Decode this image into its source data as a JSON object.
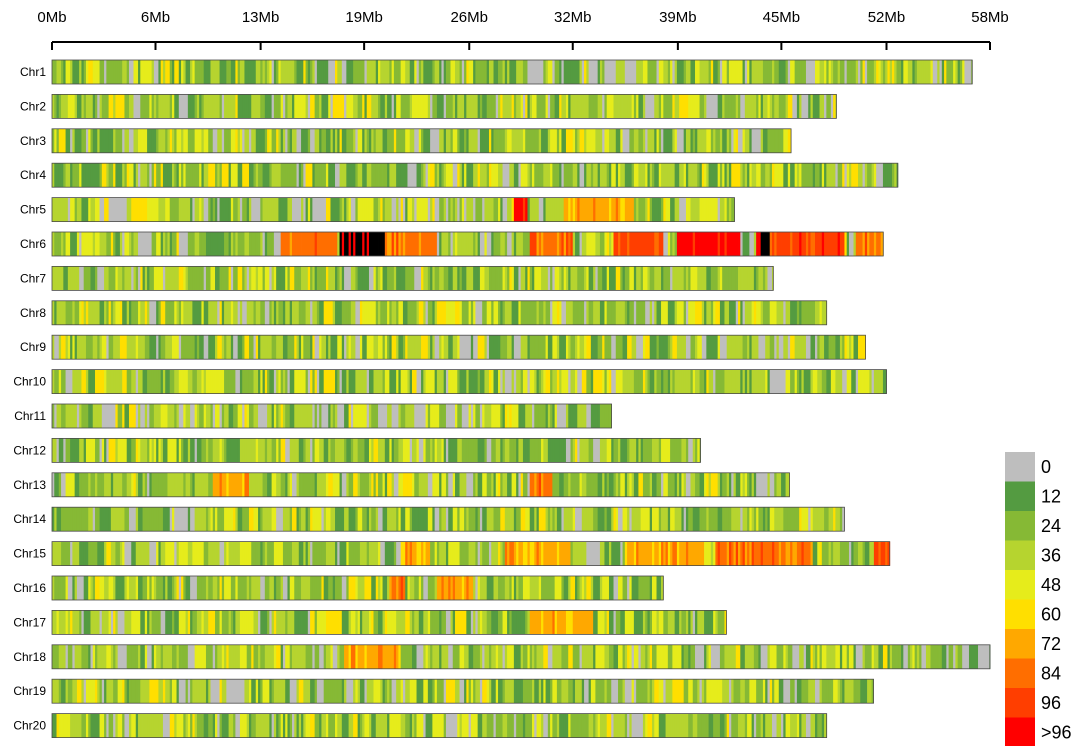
{
  "chart_data": {
    "type": "heatmap",
    "title": "",
    "xlabel": "",
    "ylabel": "",
    "x_unit": "Mb",
    "xlim": [
      0,
      58
    ],
    "x_ticks": [
      {
        "value": 0,
        "label": "0Mb"
      },
      {
        "value": 6.4,
        "label": "6Mb"
      },
      {
        "value": 12.9,
        "label": "13Mb"
      },
      {
        "value": 19.3,
        "label": "19Mb"
      },
      {
        "value": 25.8,
        "label": "26Mb"
      },
      {
        "value": 32.2,
        "label": "32Mb"
      },
      {
        "value": 38.7,
        "label": "39Mb"
      },
      {
        "value": 45.1,
        "label": "45Mb"
      },
      {
        "value": 51.6,
        "label": "52Mb"
      },
      {
        "value": 58,
        "label": "58Mb"
      }
    ],
    "chromosomes": [
      {
        "name": "Chr1",
        "length_mb": 56.9
      },
      {
        "name": "Chr2",
        "length_mb": 48.5
      },
      {
        "name": "Chr3",
        "length_mb": 45.7
      },
      {
        "name": "Chr4",
        "length_mb": 52.3
      },
      {
        "name": "Chr5",
        "length_mb": 42.2
      },
      {
        "name": "Chr6",
        "length_mb": 51.4
      },
      {
        "name": "Chr7",
        "length_mb": 44.6
      },
      {
        "name": "Chr8",
        "length_mb": 47.9
      },
      {
        "name": "Chr9",
        "length_mb": 50.3
      },
      {
        "name": "Chr10",
        "length_mb": 51.6
      },
      {
        "name": "Chr11",
        "length_mb": 34.6
      },
      {
        "name": "Chr12",
        "length_mb": 40.1
      },
      {
        "name": "Chr13",
        "length_mb": 45.6
      },
      {
        "name": "Chr14",
        "length_mb": 49.0
      },
      {
        "name": "Chr15",
        "length_mb": 51.8
      },
      {
        "name": "Chr16",
        "length_mb": 37.8
      },
      {
        "name": "Chr17",
        "length_mb": 41.7
      },
      {
        "name": "Chr18",
        "length_mb": 58.0
      },
      {
        "name": "Chr19",
        "length_mb": 50.8
      },
      {
        "name": "Chr20",
        "length_mb": 47.9
      }
    ],
    "hotspots": [
      {
        "chr": "Chr5",
        "start": 28.6,
        "end": 29.4,
        "level": 9
      },
      {
        "chr": "Chr5",
        "start": 31.6,
        "end": 36.0,
        "level": 6
      },
      {
        "chr": "Chr6",
        "start": 14.2,
        "end": 17.6,
        "level": 7
      },
      {
        "chr": "Chr6",
        "start": 17.8,
        "end": 20.6,
        "level": 10
      },
      {
        "chr": "Chr6",
        "start": 20.6,
        "end": 23.5,
        "level": 7
      },
      {
        "chr": "Chr6",
        "start": 29.6,
        "end": 32.2,
        "level": 7
      },
      {
        "chr": "Chr6",
        "start": 34.7,
        "end": 37.8,
        "level": 8
      },
      {
        "chr": "Chr6",
        "start": 38.6,
        "end": 42.6,
        "level": 9
      },
      {
        "chr": "Chr6",
        "start": 43.5,
        "end": 44.4,
        "level": 10
      },
      {
        "chr": "Chr6",
        "start": 44.4,
        "end": 49.0,
        "level": 8
      },
      {
        "chr": "Chr6",
        "start": 49.7,
        "end": 51.4,
        "level": 7
      },
      {
        "chr": "Chr13",
        "start": 10.0,
        "end": 12.0,
        "level": 6
      },
      {
        "chr": "Chr13",
        "start": 29.6,
        "end": 30.6,
        "level": 7
      },
      {
        "chr": "Chr15",
        "start": 21.6,
        "end": 23.4,
        "level": 6
      },
      {
        "chr": "Chr15",
        "start": 28.0,
        "end": 32.0,
        "level": 6
      },
      {
        "chr": "Chr15",
        "start": 35.4,
        "end": 40.0,
        "level": 6
      },
      {
        "chr": "Chr15",
        "start": 41.0,
        "end": 47.0,
        "level": 7
      },
      {
        "chr": "Chr15",
        "start": 50.8,
        "end": 51.8,
        "level": 8
      },
      {
        "chr": "Chr16",
        "start": 20.8,
        "end": 21.8,
        "level": 7
      },
      {
        "chr": "Chr16",
        "start": 23.8,
        "end": 26.0,
        "level": 6
      },
      {
        "chr": "Chr17",
        "start": 29.5,
        "end": 33.5,
        "level": 6
      },
      {
        "chr": "Chr18",
        "start": 18.0,
        "end": 21.5,
        "level": 6
      }
    ],
    "legend": {
      "title": "",
      "position": "bottom-right",
      "entries": [
        {
          "label": "0",
          "color": "#bebebe"
        },
        {
          "label": "12",
          "color": "#549b41"
        },
        {
          "label": "24",
          "color": "#86b935"
        },
        {
          "label": "36",
          "color": "#b6d42f"
        },
        {
          "label": "48",
          "color": "#e6ec1b"
        },
        {
          "label": "60",
          "color": "#ffdf00"
        },
        {
          "label": "72",
          "color": "#ffa800"
        },
        {
          "label": "84",
          "color": "#ff6e00"
        },
        {
          "label": "96",
          "color": "#ff3e00"
        },
        {
          "label": ">96",
          "color": "#ff0000"
        }
      ]
    }
  }
}
